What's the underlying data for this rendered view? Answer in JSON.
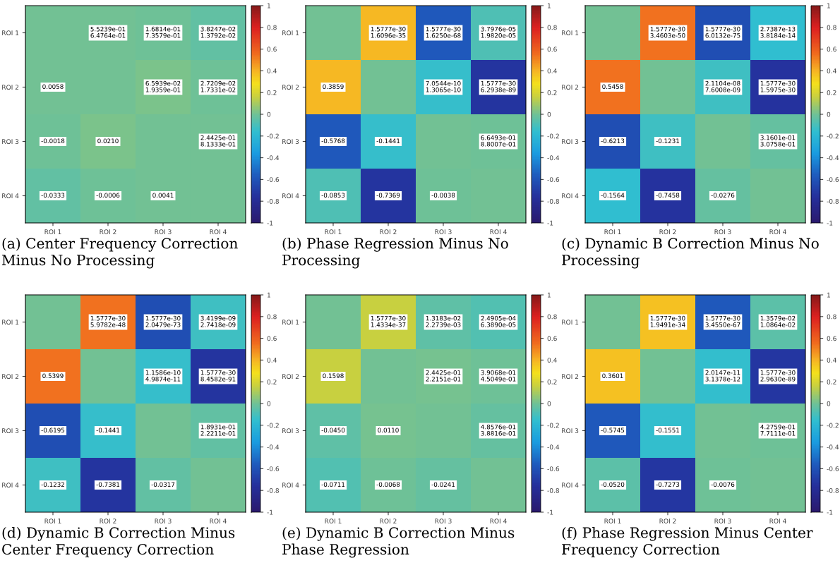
{
  "chart_data": [
    {
      "type": "heatmap",
      "title": "(a) Center Frequency Correction Minus No Processing",
      "categories": [
        "ROI 1",
        "ROI 2",
        "ROI 3",
        "ROI 4"
      ],
      "y_categories": [
        "ROI 1",
        "ROI 2",
        "ROI 3",
        "ROI 4"
      ],
      "cells": [
        [
          0,
          0.0058,
          -0.0018,
          -0.0333
        ],
        [
          0.0058,
          0,
          0.021,
          -0.0006
        ],
        [
          -0.0018,
          0.021,
          0,
          0.0041
        ],
        [
          -0.0333,
          -0.0006,
          0.0041,
          0
        ]
      ],
      "cell_labels": [
        [
          null,
          "5.5239e-01\n6.4764e-01",
          "1.6814e-01\n7.3579e-01",
          "3.8247e-02\n1.3792e-02"
        ],
        [
          "0.0058",
          null,
          "6.5939e-02\n1.9359e-01",
          "2.7209e-02\n1.7331e-02"
        ],
        [
          "-0.0018",
          "0.0210",
          null,
          "2.4425e-01\n8.1333e-01"
        ],
        [
          "-0.0333",
          "-0.0006",
          "0.0041",
          null
        ]
      ],
      "clim": [
        -1,
        1
      ],
      "cticks": [
        -1,
        -0.8,
        -0.6,
        -0.4,
        -0.2,
        0,
        0.2,
        0.4,
        0.6,
        0.8,
        1
      ]
    },
    {
      "type": "heatmap",
      "title": "(b) Phase Regression Minus No Processing",
      "categories": [
        "ROI 1",
        "ROI 2",
        "ROI 3",
        "ROI 4"
      ],
      "y_categories": [
        "ROI 1",
        "ROI 2",
        "ROI 3",
        "ROI 4"
      ],
      "cells": [
        [
          0,
          0.3859,
          -0.5768,
          -0.0853
        ],
        [
          0.3859,
          0,
          -0.1441,
          -0.7369
        ],
        [
          -0.5768,
          -0.1441,
          0,
          -0.0038
        ],
        [
          -0.0853,
          -0.7369,
          -0.0038,
          0
        ]
      ],
      "cell_labels": [
        [
          null,
          "1.5777e-30\n1.6096e-35",
          "1.5777e-30\n1.6250e-68",
          "3.7976e-05\n1.9820e-05"
        ],
        [
          "0.3859",
          null,
          "7.0544e-10\n1.3065e-10",
          "1.5777e-30\n6.2938e-89"
        ],
        [
          "-0.5768",
          "-0.1441",
          null,
          "6.6493e-01\n8.8007e-01"
        ],
        [
          "-0.0853",
          "-0.7369",
          "-0.0038",
          null
        ]
      ],
      "clim": [
        -1,
        1
      ],
      "cticks": [
        -1,
        -0.8,
        -0.6,
        -0.4,
        -0.2,
        0,
        0.2,
        0.4,
        0.6,
        0.8,
        1
      ]
    },
    {
      "type": "heatmap",
      "title": "(c) Dynamic B Correction Minus No Processing",
      "categories": [
        "ROI 1",
        "ROI 2",
        "ROI 3",
        "ROI 4"
      ],
      "y_categories": [
        "ROI 1",
        "ROI 2",
        "ROI 3",
        "ROI 4"
      ],
      "cells": [
        [
          0,
          0.5458,
          -0.6213,
          -0.1564
        ],
        [
          0.5458,
          0,
          -0.1231,
          -0.7458
        ],
        [
          -0.6213,
          -0.1231,
          0,
          -0.0276
        ],
        [
          -0.1564,
          -0.7458,
          -0.0276,
          0
        ]
      ],
      "cell_labels": [
        [
          null,
          "1.5777e-30\n3.4603e-50",
          "1.5777e-30\n6.0132e-75",
          "2.7387e-13\n3.8184e-14"
        ],
        [
          "0.5458",
          null,
          "2.1104e-08\n7.6008e-09",
          "1.5777e-30\n1.5975e-30"
        ],
        [
          "-0.6213",
          "-0.1231",
          null,
          "3.1601e-01\n3.0758e-01"
        ],
        [
          "-0.1564",
          "-0.7458",
          "-0.0276",
          null
        ]
      ],
      "clim": [
        -1,
        1
      ],
      "cticks": [
        -1,
        -0.8,
        -0.6,
        -0.4,
        -0.2,
        0,
        0.2,
        0.4,
        0.6,
        0.8,
        1
      ]
    },
    {
      "type": "heatmap",
      "title": "(d) Dynamic B Correction Minus Center Frequency Correction",
      "categories": [
        "ROI 1",
        "ROI 2",
        "ROI 3",
        "ROI 4"
      ],
      "y_categories": [
        "ROI 1",
        "ROI 2",
        "ROI 3",
        "ROI 4"
      ],
      "cells": [
        [
          0,
          0.5399,
          -0.6195,
          -0.1232
        ],
        [
          0.5399,
          0,
          -0.1441,
          -0.7381
        ],
        [
          -0.6195,
          -0.1441,
          0,
          -0.0317
        ],
        [
          -0.1232,
          -0.7381,
          -0.0317,
          0
        ]
      ],
      "cell_labels": [
        [
          null,
          "1.5777e-30\n5.9782e-48",
          "1.5777e-30\n2.0479e-73",
          "3.4199e-09\n2.7418e-09"
        ],
        [
          "0.5399",
          null,
          "1.1586e-10\n4.9874e-11",
          "1.5777e-30\n8.4582e-91"
        ],
        [
          "-0.6195",
          "-0.1441",
          null,
          "1.8931e-01\n2.2211e-01"
        ],
        [
          "-0.1232",
          "-0.7381",
          "-0.0317",
          null
        ]
      ],
      "clim": [
        -1,
        1
      ],
      "cticks": [
        -1,
        -0.8,
        -0.6,
        -0.4,
        -0.2,
        0,
        0.2,
        0.4,
        0.6,
        0.8,
        1
      ]
    },
    {
      "type": "heatmap",
      "title": "(e) Dynamic B Correction Minus Phase Regression",
      "categories": [
        "ROI 1",
        "ROI 2",
        "ROI 3",
        "ROI 4"
      ],
      "y_categories": [
        "ROI 1",
        "ROI 2",
        "ROI 3",
        "ROI 4"
      ],
      "cells": [
        [
          0,
          0.1598,
          -0.045,
          -0.0711
        ],
        [
          0.1598,
          0,
          0.011,
          -0.0068
        ],
        [
          -0.045,
          0.011,
          0,
          -0.0241
        ],
        [
          -0.0711,
          -0.0068,
          -0.0241,
          0
        ]
      ],
      "cell_labels": [
        [
          null,
          "1.5777e-30\n1.4334e-37",
          "1.3183e-02\n2.2739e-03",
          "2.4905e-04\n6.3890e-05"
        ],
        [
          "0.1598",
          null,
          "2.4425e-01\n2.2151e-01",
          "3.9068e-01\n4.5049e-01"
        ],
        [
          "-0.0450",
          "0.0110",
          null,
          "4.8576e-01\n3.8816e-01"
        ],
        [
          "-0.0711",
          "-0.0068",
          "-0.0241",
          null
        ]
      ],
      "clim": [
        -1,
        1
      ],
      "cticks": [
        -1,
        -0.8,
        -0.6,
        -0.4,
        -0.2,
        0,
        0.2,
        0.4,
        0.6,
        0.8,
        1
      ]
    },
    {
      "type": "heatmap",
      "title": "(f) Phase Regression Minus Center Frequency Correction",
      "categories": [
        "ROI 1",
        "ROI 2",
        "ROI 3",
        "ROI 4"
      ],
      "y_categories": [
        "ROI 1",
        "ROI 2",
        "ROI 3",
        "ROI 4"
      ],
      "cells": [
        [
          0,
          0.3601,
          -0.5745,
          -0.052
        ],
        [
          0.3601,
          0,
          -0.1551,
          -0.7273
        ],
        [
          -0.5745,
          -0.1551,
          0,
          -0.0076
        ],
        [
          -0.052,
          -0.7273,
          -0.0076,
          0
        ]
      ],
      "cell_labels": [
        [
          null,
          "1.5777e-30\n1.9491e-34",
          "1.5777e-30\n3.4550e-67",
          "1.3579e-02\n1.0864e-02"
        ],
        [
          "0.3601",
          null,
          "2.0147e-11\n3.1378e-12",
          "1.5777e-30\n2.9630e-89"
        ],
        [
          "-0.5745",
          "-0.1551",
          null,
          "4.2759e-01\n7.7111e-01"
        ],
        [
          "-0.0520",
          "-0.7273",
          "-0.0076",
          null
        ]
      ],
      "clim": [
        -1,
        1
      ],
      "cticks": [
        -1,
        -0.8,
        -0.6,
        -0.4,
        -0.2,
        0,
        0.2,
        0.4,
        0.6,
        0.8,
        1
      ]
    }
  ]
}
